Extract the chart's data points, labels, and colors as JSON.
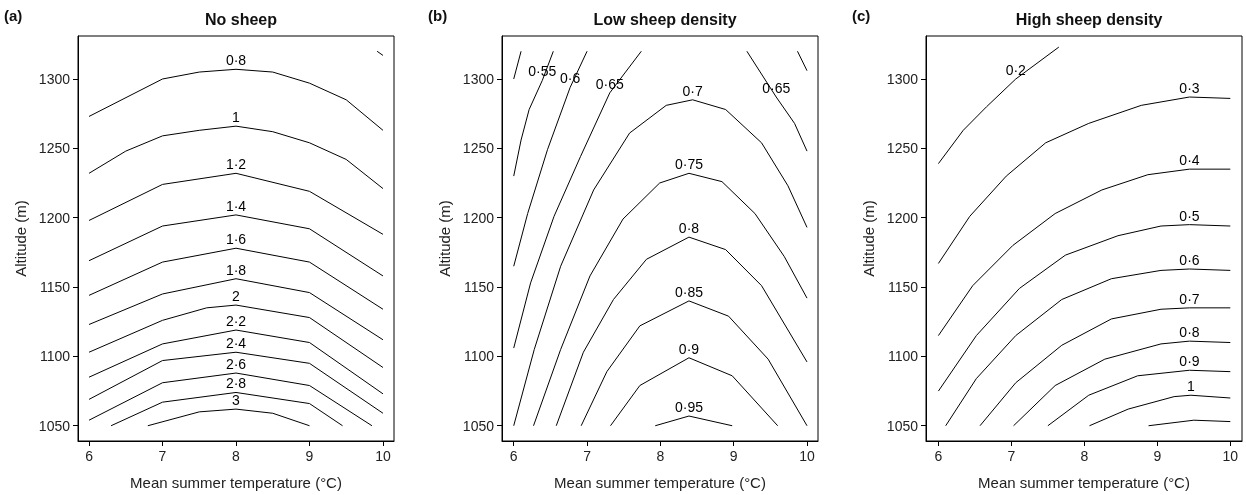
{
  "chart_data": [
    {
      "type": "line",
      "title": "No sheep",
      "annotations": [
        "(a)"
      ],
      "xlabel": "Mean summer temperature (°C)",
      "ylabel": "Altitude (m)",
      "xlim": [
        5.85,
        10.15
      ],
      "ylim": [
        1039,
        1331
      ],
      "xticks": [
        6,
        7,
        8,
        9,
        10
      ],
      "yticks": [
        1050,
        1100,
        1150,
        1200,
        1250,
        1300
      ],
      "grid": false,
      "marker": "none",
      "line_style": "solid",
      "series": [
        {
          "name": "0·8",
          "color": "#000000",
          "x": [
            6,
            7,
            7.5,
            8,
            8.5,
            9,
            9.5,
            10
          ],
          "values": [
            1273,
            1300,
            1305,
            1307,
            1305,
            1297,
            1285,
            1263
          ]
        },
        {
          "name": "1",
          "color": "#000000",
          "x": [
            6,
            6.5,
            7,
            7.5,
            8,
            8.5,
            9,
            9.5,
            10
          ],
          "values": [
            1232,
            1248,
            1259,
            1263,
            1266,
            1262,
            1254,
            1242,
            1221
          ]
        },
        {
          "name": "1·2",
          "color": "#000000",
          "x": [
            6,
            7,
            8,
            9,
            10
          ],
          "values": [
            1198,
            1224,
            1232,
            1219,
            1188
          ]
        },
        {
          "name": "1·4",
          "color": "#000000",
          "x": [
            6,
            7,
            8,
            9,
            10
          ],
          "values": [
            1169,
            1194,
            1202,
            1192,
            1158
          ]
        },
        {
          "name": "1·6",
          "color": "#000000",
          "x": [
            6,
            7,
            8,
            9,
            10
          ],
          "values": [
            1144,
            1168,
            1178,
            1168,
            1134
          ]
        },
        {
          "name": "1·8",
          "color": "#000000",
          "x": [
            6,
            7,
            8,
            9,
            10
          ],
          "values": [
            1123,
            1145,
            1156,
            1146,
            1112
          ]
        },
        {
          "name": "2",
          "color": "#000000",
          "x": [
            6,
            7,
            7.6,
            8,
            9,
            10
          ],
          "values": [
            1103,
            1126,
            1135,
            1137,
            1128,
            1092
          ]
        },
        {
          "name": "2·2",
          "color": "#000000",
          "x": [
            6,
            7,
            8,
            9,
            10
          ],
          "values": [
            1085,
            1109,
            1119,
            1110,
            1073
          ]
        },
        {
          "name": "2·4",
          "color": "#000000",
          "x": [
            6,
            7,
            8,
            9,
            10
          ],
          "values": [
            1069,
            1097,
            1103,
            1095,
            1059
          ]
        },
        {
          "name": "2·6",
          "color": "#000000",
          "x": [
            6,
            7,
            8,
            9,
            9.85
          ],
          "values": [
            1054,
            1081,
            1088,
            1079,
            1050
          ]
        },
        {
          "name": "2·8",
          "color": "#000000",
          "x": [
            6.3,
            7,
            8,
            9,
            9.45
          ],
          "values": [
            1050,
            1067,
            1074,
            1066,
            1050
          ]
        },
        {
          "name": "3",
          "color": "#000000",
          "x": [
            6.8,
            7.5,
            8,
            8.5,
            9
          ],
          "values": [
            1050,
            1060,
            1062,
            1059,
            1050
          ]
        },
        {
          "color": "#000000",
          "x": [
            9.92,
            10
          ],
          "values": [
            1320,
            1317
          ]
        }
      ]
    },
    {
      "type": "line",
      "title": "Low sheep density",
      "annotations": [
        "(b)"
      ],
      "xlabel": "Mean summer temperature (°C)",
      "ylabel": "Altitude (m)",
      "xlim": [
        5.84,
        10.15
      ],
      "ylim": [
        1039,
        1331
      ],
      "xticks": [
        6,
        7,
        8,
        9,
        10
      ],
      "yticks": [
        1050,
        1100,
        1150,
        1200,
        1250,
        1300
      ],
      "grid": false,
      "marker": "none",
      "line_style": "solid",
      "series": [
        {
          "color": "#000000",
          "x": [
            6,
            6.1
          ],
          "values": [
            1300,
            1320
          ]
        },
        {
          "name": "0·55",
          "color": "#000000",
          "x": [
            6,
            6.1,
            6.21,
            6.39,
            6.54
          ],
          "values": [
            1230,
            1256,
            1278,
            1299,
            1320
          ]
        },
        {
          "name": "0·6",
          "color": "#000000",
          "x": [
            6,
            6.19,
            6.46,
            6.77,
            7
          ],
          "values": [
            1165,
            1203,
            1249,
            1294,
            1320
          ]
        },
        {
          "name": "0·65",
          "color": "#000000",
          "x": [
            6,
            6.23,
            6.55,
            6.91,
            7.31,
            7.74,
            null,
            9.18,
            9.58,
            9.83,
            10
          ],
          "values": [
            1106,
            1153,
            1201,
            1244,
            1290,
            1320,
            null,
            1320,
            1287,
            1268,
            1248
          ]
        },
        {
          "name": "0·7",
          "color": "#000000",
          "x": [
            6,
            6.28,
            6.64,
            7.09,
            7.58,
            8.08,
            8.44,
            8.89,
            9.38,
            9.74,
            10
          ],
          "values": [
            1050,
            1105,
            1165,
            1220,
            1261,
            1281,
            1285,
            1278,
            1254,
            1223,
            1193
          ]
        },
        {
          "name": "0·75",
          "color": "#000000",
          "x": [
            6.27,
            6.64,
            7.04,
            7.49,
            7.99,
            8.39,
            8.84,
            9.29,
            9.69,
            10
          ],
          "values": [
            1050,
            1105,
            1158,
            1199,
            1225,
            1232,
            1226,
            1203,
            1172,
            1142
          ]
        },
        {
          "name": "0·8",
          "color": "#000000",
          "x": [
            6.58,
            6.95,
            7.36,
            7.81,
            8.39,
            8.89,
            9.38,
            10
          ],
          "values": [
            1050,
            1103,
            1141,
            1170,
            1186,
            1177,
            1151,
            1096
          ]
        },
        {
          "name": "0·85",
          "color": "#000000",
          "x": [
            6.92,
            7.27,
            7.72,
            8.39,
            8.93,
            9.47,
            10
          ],
          "values": [
            1050,
            1089,
            1122,
            1140,
            1129,
            1098,
            1050
          ]
        },
        {
          "name": "0·9",
          "color": "#000000",
          "x": [
            7.32,
            7.72,
            8.39,
            8.98,
            9.6
          ],
          "values": [
            1050,
            1079,
            1099,
            1086,
            1050
          ]
        },
        {
          "name": "0·95",
          "color": "#000000",
          "x": [
            7.93,
            8.39,
            8.98
          ],
          "values": [
            1050,
            1057,
            1050
          ]
        },
        {
          "color": "#000000",
          "x": [
            9.87,
            10
          ],
          "values": [
            1320,
            1306
          ]
        }
      ]
    },
    {
      "type": "line",
      "title": "High sheep density",
      "annotations": [
        "(c)"
      ],
      "xlabel": "Mean summer temperature (°C)",
      "ylabel": "Altitude (m)",
      "xlim": [
        5.83,
        10.16
      ],
      "ylim": [
        1039,
        1331
      ],
      "xticks": [
        6,
        7,
        8,
        9,
        10
      ],
      "yticks": [
        1050,
        1100,
        1150,
        1200,
        1250,
        1300
      ],
      "grid": false,
      "marker": "none",
      "line_style": "solid",
      "series": [
        {
          "name": "0·2",
          "color": "#000000",
          "x": [
            6,
            6.34,
            6.66,
            7.06,
            7.65
          ],
          "values": [
            1239,
            1263,
            1280,
            1300,
            1323
          ]
        },
        {
          "name": "0·3",
          "color": "#000000",
          "x": [
            6,
            6.43,
            6.93,
            7.47,
            8.06,
            8.78,
            9.44,
            10
          ],
          "values": [
            1167,
            1201,
            1230,
            1254,
            1268,
            1281,
            1287,
            1286
          ]
        },
        {
          "name": "0·4",
          "color": "#000000",
          "x": [
            6,
            6.47,
            7.02,
            7.6,
            8.24,
            8.87,
            9.44,
            10
          ],
          "values": [
            1115,
            1151,
            1180,
            1203,
            1220,
            1231,
            1235,
            1235
          ]
        },
        {
          "name": "0·5",
          "color": "#000000",
          "x": [
            6,
            6.52,
            7.11,
            7.74,
            8.46,
            9.05,
            9.44,
            10
          ],
          "values": [
            1075,
            1115,
            1149,
            1173,
            1187,
            1194,
            1195,
            1194
          ]
        },
        {
          "name": "0·6",
          "color": "#000000",
          "x": [
            6.1,
            6.52,
            7.06,
            7.69,
            8.37,
            9.05,
            9.44,
            10
          ],
          "values": [
            1050,
            1084,
            1115,
            1141,
            1156,
            1162,
            1163,
            1162
          ]
        },
        {
          "name": "0·7",
          "color": "#000000",
          "x": [
            6.57,
            7.06,
            7.69,
            8.37,
            9.05,
            9.44,
            10
          ],
          "values": [
            1050,
            1081,
            1108,
            1127,
            1134,
            1135,
            1135
          ]
        },
        {
          "name": "0·8",
          "color": "#000000",
          "x": [
            7.03,
            7.6,
            8.28,
            9.05,
            9.44,
            10
          ],
          "values": [
            1050,
            1079,
            1098,
            1109,
            1111,
            1110
          ]
        },
        {
          "name": "0·9",
          "color": "#000000",
          "x": [
            7.5,
            8.06,
            8.73,
            9.44,
            10
          ],
          "values": [
            1050,
            1072,
            1086,
            1090,
            1089
          ]
        },
        {
          "name": "1",
          "color": "#000000",
          "x": [
            8.07,
            8.6,
            9.23,
            9.46,
            10
          ],
          "values": [
            1050,
            1062,
            1071,
            1072,
            1070
          ]
        },
        {
          "color": "#000000",
          "x": [
            8.88,
            9.5,
            10
          ],
          "values": [
            1050,
            1054,
            1053
          ]
        }
      ]
    }
  ]
}
